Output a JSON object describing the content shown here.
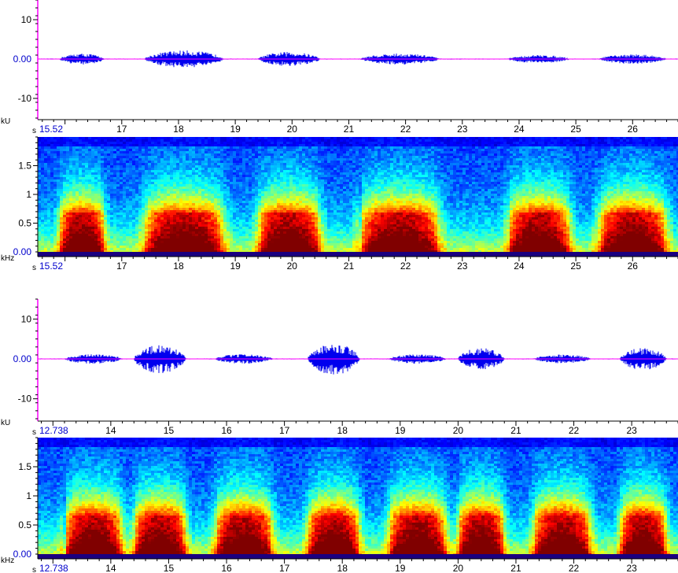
{
  "chart_data": [
    {
      "type": "line",
      "panel": "waveform-1",
      "ylabel": "kU",
      "xlabel": "s",
      "start_label": "15.52",
      "zero_label": "0.00",
      "x_ticks": [
        17,
        18,
        19,
        20,
        21,
        22,
        23,
        24,
        25,
        26
      ],
      "y_ticks": [
        10,
        -10
      ],
      "xlim": [
        15.52,
        26.8
      ],
      "ylim": [
        -15,
        15
      ],
      "bursts": [
        {
          "start": 15.9,
          "end": 16.7,
          "amp": 1.4
        },
        {
          "start": 17.4,
          "end": 18.8,
          "amp": 2.2
        },
        {
          "start": 19.4,
          "end": 20.5,
          "amp": 1.8
        },
        {
          "start": 21.2,
          "end": 22.6,
          "amp": 1.4
        },
        {
          "start": 23.8,
          "end": 24.9,
          "amp": 1.0
        },
        {
          "start": 25.4,
          "end": 26.6,
          "amp": 1.2
        }
      ]
    },
    {
      "type": "heatmap",
      "panel": "spectrogram-1",
      "ylabel": "kHz",
      "xlabel": "s",
      "start_label": "15.52",
      "zero_label": "0.00",
      "x_ticks": [
        17,
        18,
        19,
        20,
        21,
        22,
        23,
        24,
        25,
        26
      ],
      "y_ticks": [
        0.5,
        1,
        1.5
      ],
      "xlim": [
        15.52,
        26.8
      ],
      "ylim": [
        0,
        2
      ],
      "bursts": [
        {
          "start": 15.9,
          "end": 16.7
        },
        {
          "start": 17.4,
          "end": 18.8
        },
        {
          "start": 19.4,
          "end": 20.5
        },
        {
          "start": 21.2,
          "end": 22.6
        },
        {
          "start": 23.8,
          "end": 24.9
        },
        {
          "start": 25.4,
          "end": 26.6
        }
      ]
    },
    {
      "type": "line",
      "panel": "waveform-2",
      "ylabel": "kU",
      "xlabel": "s",
      "start_label": "12.738",
      "zero_label": "0.00",
      "x_ticks": [
        14,
        15,
        16,
        17,
        18,
        19,
        20,
        21,
        22,
        23
      ],
      "y_ticks": [
        10,
        -10
      ],
      "xlim": [
        12.738,
        23.8
      ],
      "ylim": [
        -15,
        15
      ],
      "bursts": [
        {
          "start": 13.2,
          "end": 14.2,
          "amp": 1.2
        },
        {
          "start": 14.4,
          "end": 15.3,
          "amp": 3.6
        },
        {
          "start": 15.8,
          "end": 16.8,
          "amp": 1.2
        },
        {
          "start": 17.4,
          "end": 18.3,
          "amp": 4.0
        },
        {
          "start": 18.8,
          "end": 19.8,
          "amp": 1.2
        },
        {
          "start": 20.0,
          "end": 20.8,
          "amp": 2.8
        },
        {
          "start": 21.3,
          "end": 22.3,
          "amp": 1.1
        },
        {
          "start": 22.8,
          "end": 23.6,
          "amp": 2.8
        }
      ]
    },
    {
      "type": "heatmap",
      "panel": "spectrogram-2",
      "ylabel": "kHz",
      "xlabel": "s",
      "start_label": "12.738",
      "zero_label": "0.00",
      "x_ticks": [
        14,
        15,
        16,
        17,
        18,
        19,
        20,
        21,
        22,
        23
      ],
      "y_ticks": [
        0.5,
        1,
        1.5
      ],
      "xlim": [
        12.738,
        23.8
      ],
      "ylim": [
        0,
        2
      ],
      "bursts": [
        {
          "start": 13.2,
          "end": 14.2
        },
        {
          "start": 14.4,
          "end": 15.3
        },
        {
          "start": 15.8,
          "end": 16.8
        },
        {
          "start": 17.4,
          "end": 18.3
        },
        {
          "start": 18.8,
          "end": 19.8
        },
        {
          "start": 20.0,
          "end": 20.8
        },
        {
          "start": 21.3,
          "end": 22.3
        },
        {
          "start": 22.8,
          "end": 23.6
        }
      ]
    }
  ],
  "colors": {
    "waveform": "#0000ee",
    "baseline": "#ff00ff",
    "axis": "#ff00ff",
    "spec_background": "#00007f",
    "label_blue": "#0000cc"
  }
}
